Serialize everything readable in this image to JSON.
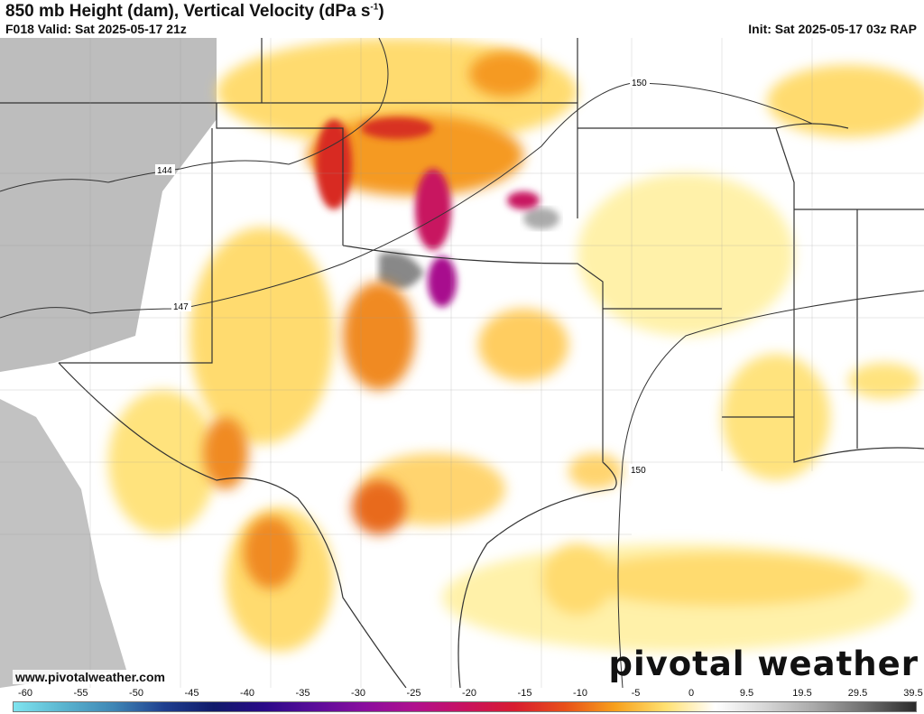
{
  "header": {
    "title": "850 mb Height (dam), Vertical Velocity (dPa s",
    "title_sup": "-1",
    "title_end": ")",
    "valid": "F018 Valid: Sat 2025-05-17 21z",
    "init": "Init: Sat 2025-05-17 03z RAP"
  },
  "map": {
    "contour_labels": [
      "144",
      "147",
      "150",
      "150"
    ],
    "website": "www.pivotalweather.com",
    "logo": "pivotal weather"
  },
  "colorbar": {
    "ticks": [
      "-60",
      "-55",
      "-50",
      "-45",
      "-40",
      "-35",
      "-30",
      "-25",
      "-20",
      "-15",
      "-10",
      "-5",
      "0",
      "9.5",
      "19.5",
      "29.5",
      "39.5"
    ],
    "colors": [
      "#7fe4ef",
      "#5ab4cf",
      "#3f86b5",
      "#1f3f8f",
      "#101a6a",
      "#2a0a88",
      "#5a0c9a",
      "#8a0e9e",
      "#b0108e",
      "#c81260",
      "#d81c30",
      "#e8501a",
      "#f7a01c",
      "#ffe070",
      "#ffffff",
      "#d6d6d6",
      "#a8a8a8",
      "#6e6e6e",
      "#2a2a2a"
    ]
  }
}
